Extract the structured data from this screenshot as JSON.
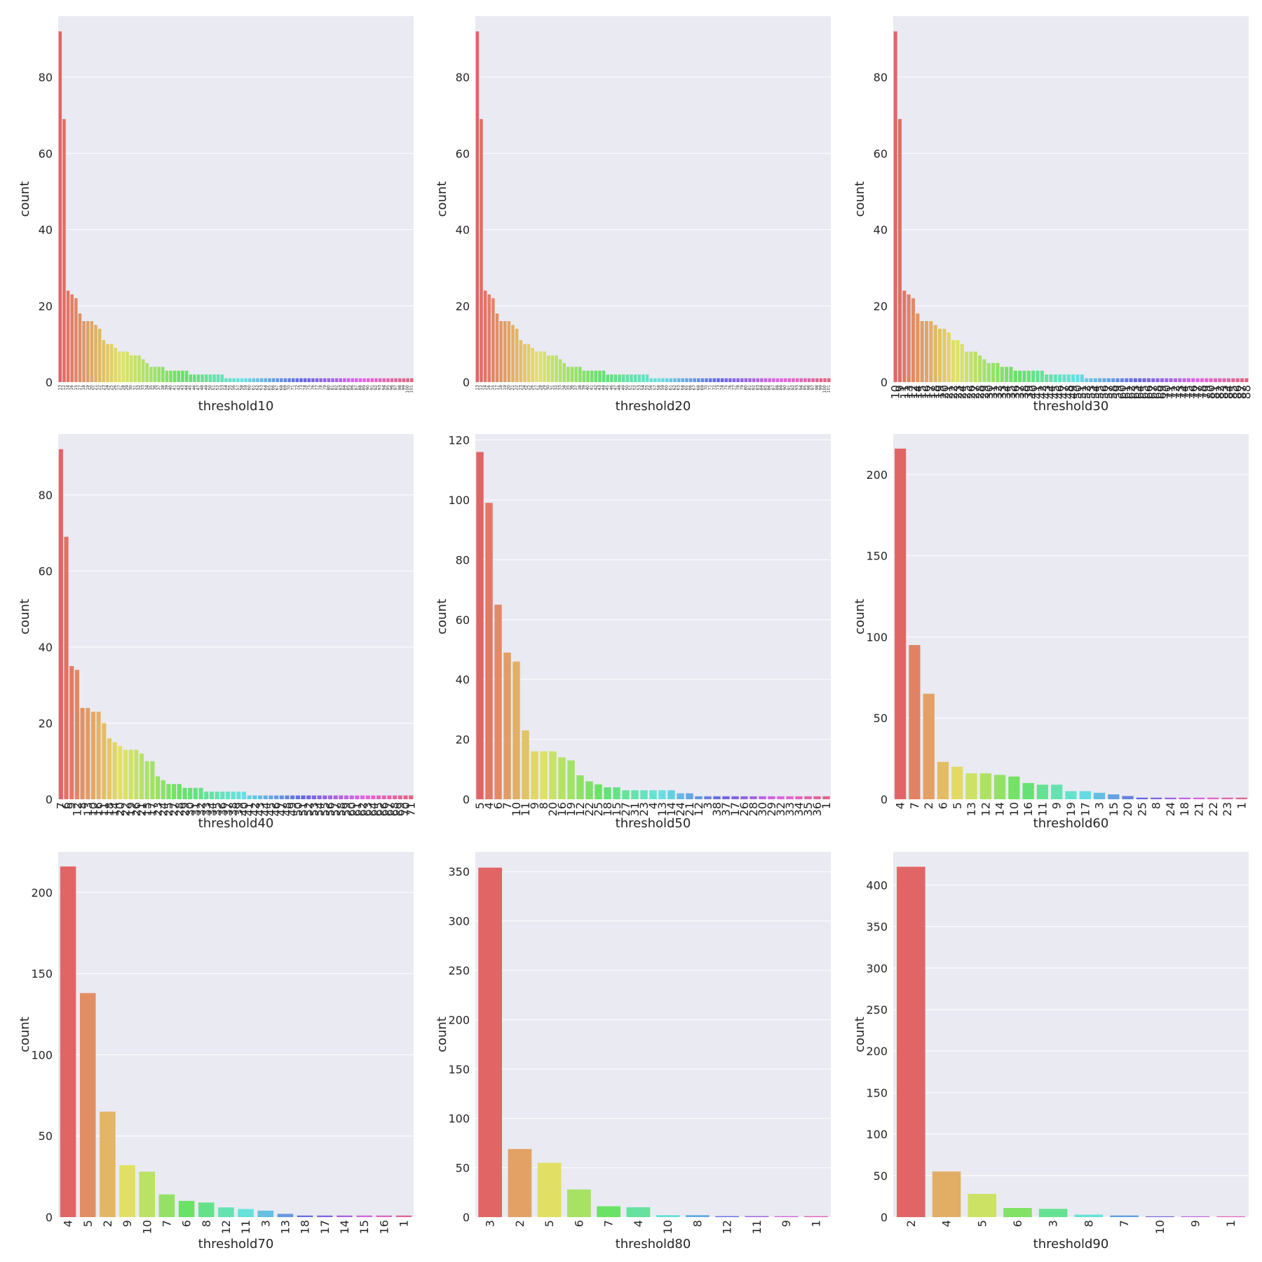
{
  "figure": {
    "grid": true,
    "background": "#EAEAF2",
    "grid_color": "#FFFFFF"
  },
  "chart_data": [
    {
      "type": "bar",
      "xlabel": "threshold10",
      "ylabel": "count",
      "ylim": [
        0,
        96
      ],
      "yticks": [
        0,
        20,
        40,
        60,
        80
      ],
      "categories": [
        "13",
        "12",
        "14",
        "16",
        "15",
        "17",
        "18",
        "19",
        "20",
        "21",
        "22",
        "23",
        "24",
        "25",
        "26",
        "27",
        "28",
        "29",
        "30",
        "31",
        "32",
        "33",
        "34",
        "35",
        "36",
        "37",
        "38",
        "39",
        "40",
        "41",
        "42",
        "43",
        "44",
        "45",
        "46",
        "47",
        "48",
        "49",
        "50",
        "51",
        "52",
        "53",
        "54",
        "55",
        "56",
        "57",
        "58",
        "59",
        "60",
        "61",
        "62",
        "63",
        "64",
        "65",
        "66",
        "67",
        "68",
        "69",
        "70",
        "71",
        "72",
        "73",
        "74",
        "75",
        "76",
        "77",
        "78",
        "79",
        "80",
        "81",
        "82",
        "83",
        "84",
        "85",
        "86",
        "87",
        "88",
        "89",
        "90",
        "91",
        "92",
        "93",
        "94",
        "95",
        "96",
        "97",
        "98",
        "99",
        "100",
        "101"
      ],
      "values": [
        92,
        69,
        24,
        23,
        22,
        18,
        16,
        16,
        16,
        15,
        14,
        11,
        10,
        10,
        9,
        8,
        8,
        8,
        7,
        7,
        7,
        6,
        5,
        4,
        4,
        4,
        4,
        3,
        3,
        3,
        3,
        3,
        3,
        2,
        2,
        2,
        2,
        2,
        2,
        2,
        2,
        2,
        1,
        1,
        1,
        1,
        1,
        1,
        1,
        1,
        1,
        1,
        1,
        1,
        1,
        1,
        1,
        1,
        1,
        1,
        1,
        1,
        1,
        1,
        1,
        1,
        1,
        1,
        1,
        1,
        1,
        1,
        1,
        1,
        1,
        1,
        1,
        1,
        1,
        1,
        1,
        1,
        1,
        1,
        1,
        1,
        1,
        1,
        1,
        1
      ],
      "tick_font": 6,
      "rotate": true
    },
    {
      "type": "bar",
      "xlabel": "threshold20",
      "ylabel": "count",
      "ylim": [
        0,
        96
      ],
      "yticks": [
        0,
        20,
        40,
        60,
        80
      ],
      "categories": [
        "13",
        "12",
        "14",
        "16",
        "15",
        "17",
        "18",
        "19",
        "20",
        "21",
        "22",
        "23",
        "24",
        "25",
        "26",
        "27",
        "28",
        "29",
        "30",
        "31",
        "32",
        "33",
        "34",
        "35",
        "36",
        "37",
        "38",
        "39",
        "40",
        "41",
        "42",
        "43",
        "44",
        "45",
        "46",
        "47",
        "48",
        "49",
        "50",
        "51",
        "52",
        "53",
        "54",
        "55",
        "56",
        "57",
        "58",
        "59",
        "60",
        "61",
        "62",
        "63",
        "64",
        "65",
        "66",
        "67",
        "68",
        "69",
        "70",
        "71",
        "72",
        "73",
        "74",
        "75",
        "76",
        "77",
        "78",
        "79",
        "80",
        "81",
        "82",
        "83",
        "84",
        "85",
        "86",
        "87",
        "88",
        "89",
        "90",
        "91",
        "92",
        "93",
        "94",
        "95",
        "96",
        "97",
        "98",
        "99",
        "100",
        "101"
      ],
      "values": [
        92,
        69,
        24,
        23,
        22,
        18,
        16,
        16,
        16,
        15,
        14,
        11,
        10,
        10,
        9,
        8,
        8,
        8,
        7,
        7,
        7,
        6,
        5,
        4,
        4,
        4,
        4,
        3,
        3,
        3,
        3,
        3,
        3,
        2,
        2,
        2,
        2,
        2,
        2,
        2,
        2,
        2,
        2,
        2,
        1,
        1,
        1,
        1,
        1,
        1,
        1,
        1,
        1,
        1,
        1,
        1,
        1,
        1,
        1,
        1,
        1,
        1,
        1,
        1,
        1,
        1,
        1,
        1,
        1,
        1,
        1,
        1,
        1,
        1,
        1,
        1,
        1,
        1,
        1,
        1,
        1,
        1,
        1,
        1,
        1,
        1,
        1,
        1,
        1,
        1
      ],
      "tick_font": 6,
      "rotate": true
    },
    {
      "type": "bar",
      "xlabel": "threshold30",
      "ylabel": "count",
      "ylim": [
        0,
        96
      ],
      "yticks": [
        0,
        20,
        40,
        60,
        80
      ],
      "categories": [
        "10",
        "9",
        "11",
        "13",
        "12",
        "14",
        "15",
        "16",
        "17",
        "18",
        "19",
        "20",
        "21",
        "22",
        "23",
        "24",
        "25",
        "26",
        "27",
        "28",
        "29",
        "30",
        "31",
        "32",
        "33",
        "34",
        "35",
        "36",
        "37",
        "38",
        "39",
        "40",
        "41",
        "42",
        "43",
        "44",
        "45",
        "46",
        "47",
        "48",
        "49",
        "50",
        "51",
        "52",
        "53",
        "54",
        "55",
        "56",
        "57",
        "58",
        "59",
        "60",
        "61",
        "62",
        "63",
        "64",
        "65",
        "66",
        "67",
        "68",
        "69",
        "70",
        "71",
        "72",
        "73",
        "74",
        "75",
        "76",
        "77",
        "78",
        "79",
        "80",
        "81",
        "82",
        "83",
        "84",
        "85",
        "86",
        "87",
        "88"
      ],
      "values": [
        92,
        69,
        24,
        23,
        22,
        18,
        16,
        16,
        16,
        15,
        14,
        14,
        13,
        11,
        11,
        10,
        8,
        8,
        8,
        7,
        6,
        5,
        5,
        5,
        4,
        4,
        4,
        3,
        3,
        3,
        3,
        3,
        3,
        3,
        2,
        2,
        2,
        2,
        2,
        2,
        2,
        2,
        2,
        1,
        1,
        1,
        1,
        1,
        1,
        1,
        1,
        1,
        1,
        1,
        1,
        1,
        1,
        1,
        1,
        1,
        1,
        1,
        1,
        1,
        1,
        1,
        1,
        1,
        1,
        1,
        1,
        1,
        1,
        1,
        1,
        1,
        1,
        1,
        1,
        1
      ],
      "tick_font": 16,
      "rotate": true
    },
    {
      "type": "bar",
      "xlabel": "threshold40",
      "ylabel": "count",
      "ylim": [
        0,
        96
      ],
      "yticks": [
        0,
        20,
        40,
        60,
        80
      ],
      "categories": [
        "7",
        "6",
        "9",
        "12",
        "8",
        "13",
        "10",
        "16",
        "11",
        "18",
        "14",
        "20",
        "22",
        "19",
        "26",
        "21",
        "15",
        "17",
        "23",
        "24",
        "25",
        "27",
        "28",
        "29",
        "30",
        "31",
        "32",
        "33",
        "34",
        "35",
        "36",
        "37",
        "38",
        "39",
        "40",
        "41",
        "42",
        "43",
        "44",
        "45",
        "46",
        "47",
        "48",
        "49",
        "50",
        "51",
        "52",
        "53",
        "54",
        "55",
        "56",
        "57",
        "58",
        "59",
        "60",
        "61",
        "62",
        "63",
        "64",
        "65",
        "66",
        "67",
        "68",
        "69",
        "70",
        "71"
      ],
      "values": [
        92,
        69,
        35,
        34,
        24,
        24,
        23,
        23,
        20,
        16,
        15,
        14,
        13,
        13,
        13,
        12,
        10,
        10,
        6,
        5,
        4,
        4,
        4,
        3,
        3,
        3,
        3,
        2,
        2,
        2,
        2,
        2,
        2,
        2,
        2,
        1,
        1,
        1,
        1,
        1,
        1,
        1,
        1,
        1,
        1,
        1,
        1,
        1,
        1,
        1,
        1,
        1,
        1,
        1,
        1,
        1,
        1,
        1,
        1,
        1,
        1,
        1,
        1,
        1,
        1,
        1
      ],
      "tick_font": 16,
      "rotate": true
    },
    {
      "type": "bar",
      "xlabel": "threshold50",
      "ylabel": "count",
      "ylim": [
        0,
        122
      ],
      "yticks": [
        0,
        20,
        40,
        60,
        80,
        100,
        120
      ],
      "categories": [
        "5",
        "4",
        "6",
        "7",
        "10",
        "11",
        "9",
        "8",
        "20",
        "16",
        "19",
        "12",
        "22",
        "25",
        "18",
        "15",
        "27",
        "31",
        "23",
        "4",
        "13",
        "14",
        "24",
        "21",
        "12",
        "3",
        "38",
        "37",
        "17",
        "26",
        "28",
        "30",
        "29",
        "32",
        "33",
        "34",
        "35",
        "36",
        "1"
      ],
      "values": [
        116,
        99,
        65,
        49,
        46,
        23,
        16,
        16,
        16,
        14,
        13,
        8,
        6,
        5,
        4,
        4,
        3,
        3,
        3,
        3,
        3,
        3,
        2,
        2,
        1,
        1,
        1,
        1,
        1,
        1,
        1,
        1,
        1,
        1,
        1,
        1,
        1,
        1,
        1
      ],
      "tick_font": 16,
      "rotate": true
    },
    {
      "type": "bar",
      "xlabel": "threshold60",
      "ylabel": "count",
      "ylim": [
        0,
        225
      ],
      "yticks": [
        0,
        50,
        100,
        150,
        200
      ],
      "categories": [
        "4",
        "7",
        "2",
        "6",
        "5",
        "13",
        "12",
        "14",
        "10",
        "16",
        "11",
        "9",
        "19",
        "17",
        "3",
        "15",
        "20",
        "25",
        "8",
        "24",
        "18",
        "21",
        "22",
        "23",
        "1"
      ],
      "values": [
        216,
        95,
        65,
        23,
        20,
        16,
        16,
        15,
        14,
        10,
        9,
        9,
        5,
        5,
        4,
        3,
        2,
        1,
        1,
        1,
        1,
        1,
        1,
        1,
        1
      ],
      "tick_font": 16,
      "rotate": true
    },
    {
      "type": "bar",
      "xlabel": "threshold70",
      "ylabel": "count",
      "ylim": [
        0,
        225
      ],
      "yticks": [
        0,
        50,
        100,
        150,
        200
      ],
      "categories": [
        "4",
        "5",
        "2",
        "9",
        "10",
        "7",
        "6",
        "8",
        "12",
        "11",
        "3",
        "13",
        "18",
        "17",
        "14",
        "15",
        "16",
        "1"
      ],
      "values": [
        216,
        138,
        65,
        32,
        28,
        14,
        10,
        9,
        6,
        5,
        4,
        2,
        1,
        1,
        1,
        1,
        1,
        1
      ],
      "tick_font": 16,
      "rotate": true
    },
    {
      "type": "bar",
      "xlabel": "threshold80",
      "ylabel": "count",
      "ylim": [
        0,
        370
      ],
      "yticks": [
        0,
        50,
        100,
        150,
        200,
        250,
        300,
        350
      ],
      "categories": [
        "3",
        "2",
        "5",
        "6",
        "7",
        "4",
        "10",
        "8",
        "12",
        "11",
        "9",
        "1"
      ],
      "values": [
        354,
        69,
        55,
        28,
        11,
        10,
        2,
        2,
        1,
        1,
        1,
        1
      ],
      "tick_font": 16,
      "rotate": true
    },
    {
      "type": "bar",
      "xlabel": "threshold90",
      "ylabel": "count",
      "ylim": [
        0,
        440
      ],
      "yticks": [
        0,
        50,
        100,
        150,
        200,
        250,
        300,
        350,
        400
      ],
      "categories": [
        "2",
        "4",
        "5",
        "6",
        "3",
        "8",
        "7",
        "10",
        "9",
        "1"
      ],
      "values": [
        422,
        55,
        28,
        11,
        10,
        3,
        2,
        1,
        1,
        1
      ],
      "tick_font": 16,
      "rotate": true
    }
  ]
}
